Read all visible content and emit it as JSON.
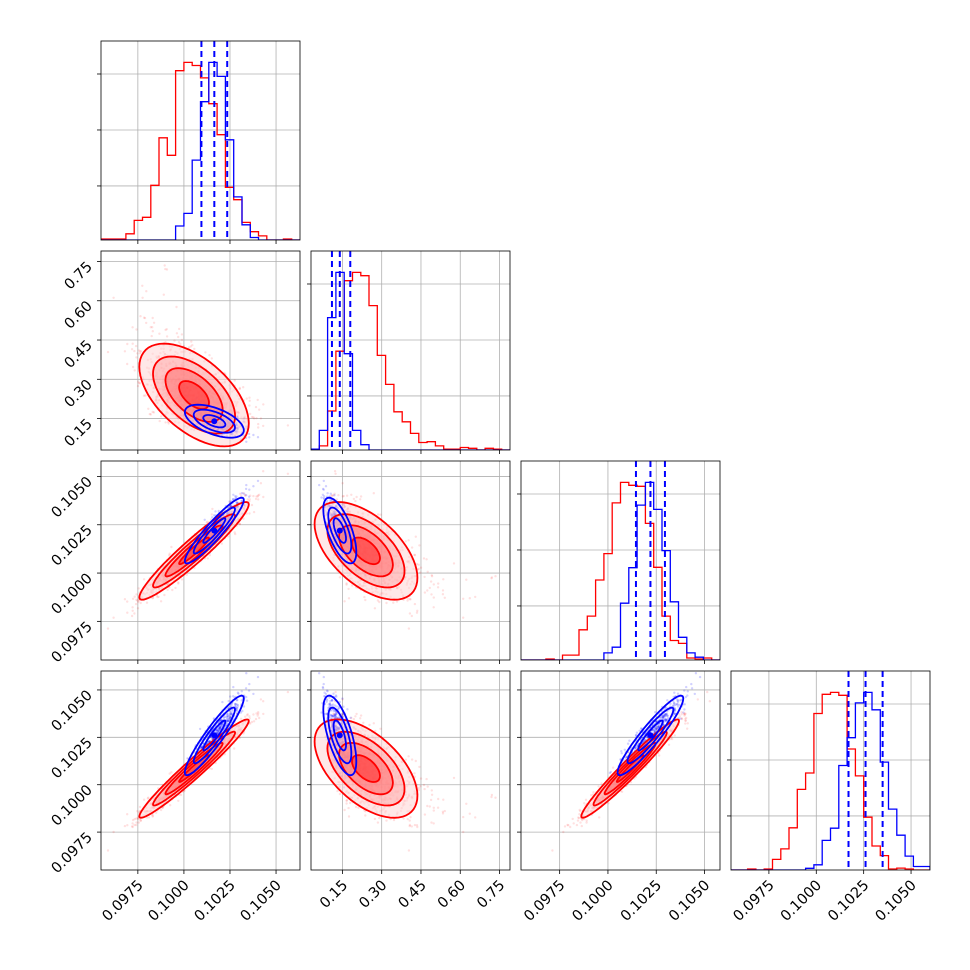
{
  "chart_data": {
    "type": "corner",
    "title": "",
    "grid": true,
    "colors": {
      "red_series": "#ff0000",
      "blue_series": "#0000ff"
    },
    "parameters": [
      {
        "ticks": [
          "0.0975",
          "0.1000",
          "0.1025",
          "0.1050"
        ],
        "tick_values": [
          0.0975,
          0.1,
          0.1025,
          0.105
        ],
        "range": [
          0.0955,
          0.1063
        ]
      },
      {
        "ticks": [
          "0.15",
          "0.30",
          "0.45",
          "0.60",
          "0.75"
        ],
        "tick_values": [
          0.15,
          0.3,
          0.45,
          0.6,
          0.75
        ],
        "range": [
          0.03,
          0.79
        ]
      },
      {
        "ticks": [
          "0.0975",
          "0.1000",
          "0.1025",
          "0.1050"
        ],
        "tick_values": [
          0.0975,
          0.1,
          0.1025,
          0.105
        ],
        "range": [
          0.0955,
          0.1058
        ]
      },
      {
        "ticks": [
          "0.0975",
          "0.1000",
          "0.1025",
          "0.1050"
        ],
        "tick_values": [
          0.0975,
          0.1,
          0.1025,
          0.105
        ],
        "range": [
          0.0955,
          0.106
        ]
      }
    ],
    "series": [
      {
        "color": "#ff0000",
        "mean": [
          0.10055,
          0.24,
          0.10115,
          0.10085
        ],
        "sd": [
          0.00135,
          0.085,
          0.00115,
          0.00118
        ],
        "correlation": [
          [
            1.0,
            -0.55,
            0.95,
            0.97
          ],
          [
            -0.55,
            1.0,
            -0.55,
            -0.55
          ],
          [
            0.95,
            -0.55,
            1.0,
            0.97
          ],
          [
            0.97,
            -0.55,
            0.97,
            1.0
          ]
        ],
        "quantile_lines": []
      },
      {
        "color": "#0000ff",
        "mean": [
          0.10165,
          0.14,
          0.1022,
          0.1026
        ],
        "sd": [
          0.0008,
          0.03,
          0.00085,
          0.00105
        ],
        "correlation": [
          [
            1.0,
            -0.55,
            0.93,
            0.93
          ],
          [
            -0.55,
            1.0,
            -0.65,
            -0.65
          ],
          [
            0.93,
            -0.65,
            1.0,
            0.93
          ],
          [
            0.93,
            -0.65,
            0.93,
            1.0
          ]
        ],
        "quantile_lines": [
          [
            0.10095,
            0.10165,
            0.10235
          ],
          [
            0.11,
            0.14,
            0.18
          ],
          [
            0.10145,
            0.1022,
            0.10295
          ],
          [
            0.1017,
            0.1026,
            0.1035
          ]
        ]
      }
    ]
  }
}
